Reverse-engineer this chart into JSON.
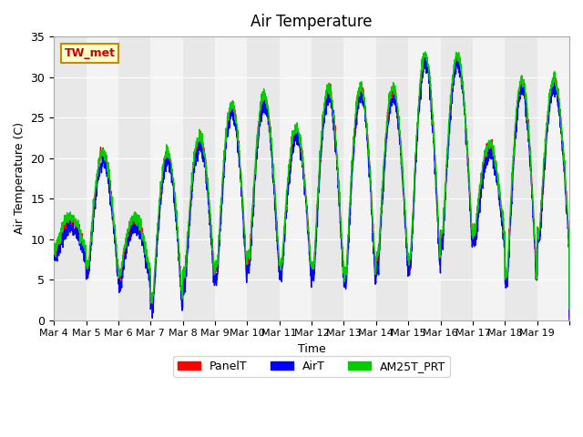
{
  "title": "Air Temperature",
  "xlabel": "Time",
  "ylabel": "Air Temperature (C)",
  "ylim": [
    0,
    35
  ],
  "background_color": "#ffffff",
  "plot_bg_color": "#e8e8e8",
  "band_color": "#d3d3d3",
  "annotation_text": "TW_met",
  "annotation_bg": "#ffffcc",
  "annotation_border": "#cc8800",
  "line_colors": {
    "PanelT": "#ff0000",
    "AirT": "#0000ff",
    "AM25T_PRT": "#00cc00"
  },
  "legend_labels": [
    "PanelT",
    "AirT",
    "AM25T_PRT"
  ],
  "x_tick_labels": [
    "Mar 4",
    "Mar 5",
    "Mar 6",
    "Mar 7",
    "Mar 8",
    "Mar 9",
    "Mar 10",
    "Mar 11",
    "Mar 12",
    "Mar 13",
    "Mar 14",
    "Mar 15",
    "Mar 16",
    "Mar 17",
    "Mar 18",
    "Mar 19"
  ],
  "num_days": 16,
  "start_day": 4,
  "yticks": [
    0,
    5,
    10,
    15,
    20,
    25,
    30,
    35
  ]
}
